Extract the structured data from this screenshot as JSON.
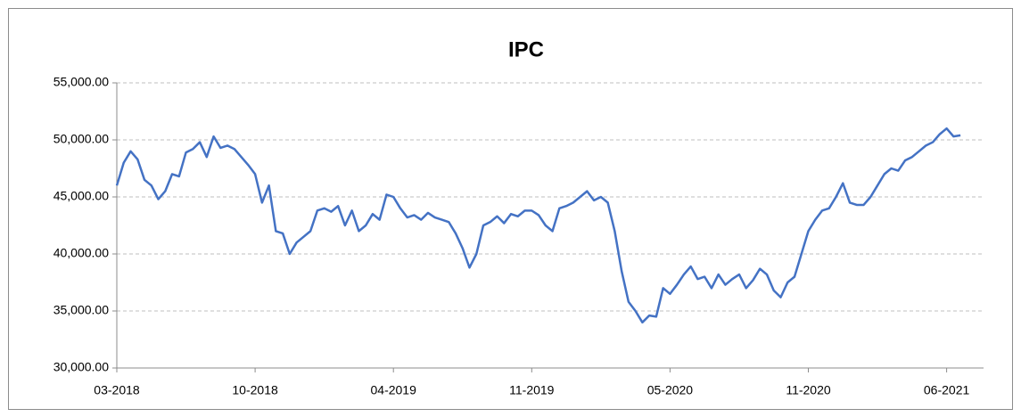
{
  "chart_data": {
    "type": "line",
    "title": "IPC",
    "categories": [
      "03-2018",
      null,
      null,
      null,
      null,
      null,
      null,
      null,
      null,
      null,
      null,
      null,
      null,
      null,
      null,
      null,
      null,
      null,
      null,
      null,
      "10-2018",
      null,
      null,
      null,
      null,
      null,
      null,
      null,
      null,
      null,
      null,
      null,
      null,
      null,
      null,
      null,
      null,
      null,
      null,
      null,
      "04-2019",
      null,
      null,
      null,
      null,
      null,
      null,
      null,
      null,
      null,
      null,
      null,
      null,
      null,
      null,
      null,
      null,
      null,
      null,
      null,
      "11-2019",
      null,
      null,
      null,
      null,
      null,
      null,
      null,
      null,
      null,
      null,
      null,
      null,
      null,
      null,
      null,
      null,
      null,
      null,
      null,
      "05-2020",
      null,
      null,
      null,
      null,
      null,
      null,
      null,
      null,
      null,
      null,
      null,
      null,
      null,
      null,
      null,
      null,
      null,
      null,
      null,
      "11-2020",
      null,
      null,
      null,
      null,
      null,
      null,
      null,
      null,
      null,
      null,
      null,
      null,
      null,
      null,
      null,
      null,
      null,
      null,
      null,
      "06-2021",
      null,
      null
    ],
    "values": [
      46000,
      48000,
      49000,
      48300,
      46500,
      46000,
      44800,
      45500,
      47000,
      46800,
      48900,
      49200,
      49800,
      48500,
      50300,
      49300,
      49500,
      49200,
      48500,
      47800,
      47000,
      44500,
      46000,
      42000,
      41800,
      40000,
      41000,
      41500,
      42000,
      43800,
      44000,
      43700,
      44200,
      42500,
      43800,
      42000,
      42500,
      43500,
      43000,
      45200,
      45000,
      44000,
      43200,
      43400,
      43000,
      43600,
      43200,
      43000,
      42800,
      41800,
      40500,
      38800,
      40000,
      42500,
      42800,
      43300,
      42700,
      43500,
      43300,
      43800,
      43800,
      43400,
      42500,
      42000,
      44000,
      44200,
      44500,
      45000,
      45500,
      44700,
      45000,
      44500,
      42000,
      38500,
      35800,
      35000,
      34000,
      34600,
      34500,
      37000,
      36500,
      37300,
      38200,
      38900,
      37800,
      38000,
      37000,
      38200,
      37300,
      37800,
      38200,
      37000,
      37700,
      38700,
      38200,
      36800,
      36200,
      37500,
      38000,
      40000,
      42000,
      43000,
      43800,
      44000,
      45000,
      46200,
      44500,
      44300,
      44300,
      45000,
      46000,
      47000,
      47500,
      47300,
      48200,
      48500,
      49000,
      49500,
      49800,
      50500,
      51000,
      50300,
      50400
    ],
    "color": "#4472c4",
    "ylim": [
      30000,
      55000
    ],
    "yticks": [
      {
        "value": 30000,
        "label": "30,000.00"
      },
      {
        "value": 35000,
        "label": "35,000.00"
      },
      {
        "value": 40000,
        "label": "40,000.00"
      },
      {
        "value": 45000,
        "label": "45,000.00"
      },
      {
        "value": 50000,
        "label": "50,000.00"
      },
      {
        "value": 55000,
        "label": "55,000.00"
      }
    ],
    "grid": true
  }
}
